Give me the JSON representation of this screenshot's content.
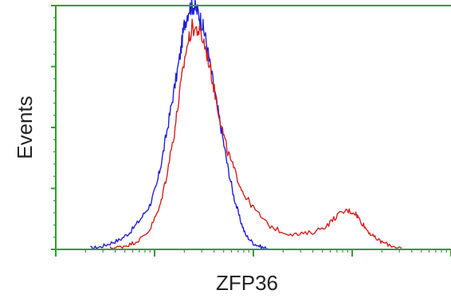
{
  "chart_data": {
    "type": "line",
    "title": "",
    "xlabel": "ZFP36",
    "ylabel": "Events",
    "xscale": "log",
    "xlim": [
      0,
      4
    ],
    "ylim": [
      0,
      100
    ],
    "x_decades": [
      0,
      1,
      2,
      3,
      4
    ],
    "y_major_ticks": [
      0,
      25,
      50,
      75,
      100
    ],
    "grid": false,
    "legend": "none",
    "axis_color": "#2ca02c",
    "series": [
      {
        "color": "#1f1fd8",
        "x": [
          0.35,
          0.45,
          0.55,
          0.65,
          0.75,
          0.85,
          0.95,
          1.02,
          1.08,
          1.14,
          1.2,
          1.26,
          1.3,
          1.35,
          1.39,
          1.43,
          1.47,
          1.51,
          1.56,
          1.62,
          1.68,
          1.74,
          1.8,
          1.86,
          1.92,
          2.0,
          2.08,
          2.16
        ],
        "y": [
          0.5,
          1,
          2.5,
          4,
          7,
          12,
          18,
          26,
          38,
          52,
          66,
          80,
          92,
          99,
          100,
          98,
          94,
          88,
          76,
          62,
          48,
          34,
          22,
          13,
          6,
          2.5,
          1,
          0
        ]
      },
      {
        "color": "#d81f1f",
        "x": [
          0.55,
          0.65,
          0.75,
          0.85,
          0.95,
          1.05,
          1.12,
          1.2,
          1.26,
          1.32,
          1.38,
          1.44,
          1.5,
          1.56,
          1.62,
          1.68,
          1.74,
          1.82,
          1.9,
          2.0,
          2.15,
          2.3,
          2.45,
          2.6,
          2.75,
          2.85,
          2.95,
          3.03,
          3.08,
          3.15,
          3.22,
          3.3,
          3.4,
          3.5
        ],
        "y": [
          0.5,
          1,
          2,
          4,
          8,
          17,
          30,
          48,
          66,
          82,
          91,
          90,
          85,
          75,
          62,
          50,
          40,
          31,
          23,
          17,
          10,
          7,
          6,
          7,
          10,
          14,
          16,
          15,
          12,
          8,
          5,
          3,
          1.5,
          0.5
        ]
      }
    ]
  }
}
